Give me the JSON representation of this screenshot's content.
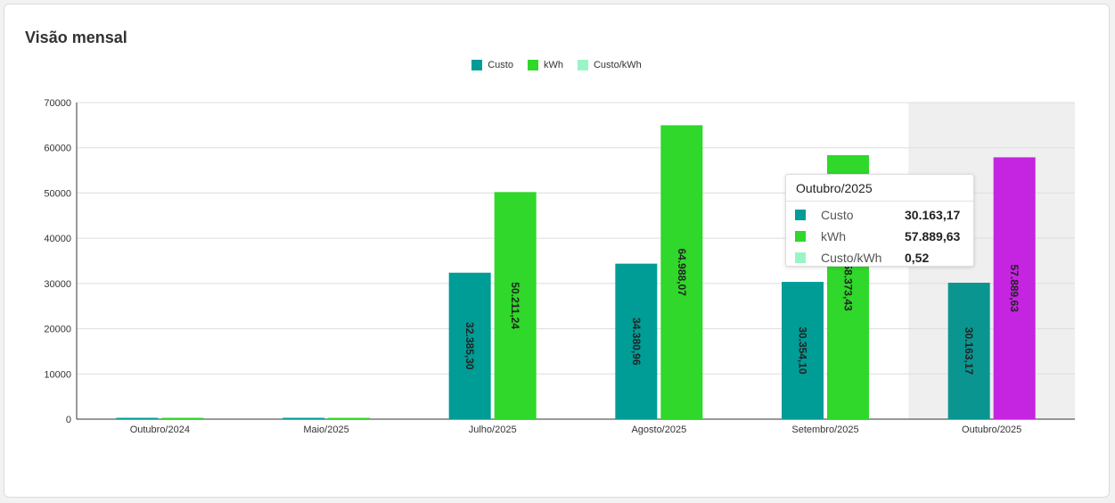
{
  "card": {
    "title": "Visão mensal"
  },
  "legend": [
    {
      "label": "Custo",
      "color": "#009c96"
    },
    {
      "label": "kWh",
      "color": "#2fd82a"
    },
    {
      "label": "Custo/kWh",
      "color": "#9af5c6"
    }
  ],
  "chart_data": {
    "type": "bar",
    "categories": [
      "Outubro/2024",
      "Maio/2025",
      "Julho/2025",
      "Agosto/2025",
      "Setembro/2025",
      "Outubro/2025"
    ],
    "series": [
      {
        "name": "Custo",
        "color": "#009c96",
        "values": [
          150,
          100,
          32385.3,
          34380.96,
          30354.1,
          30163.17
        ],
        "labels": [
          "",
          "",
          "32.385,30",
          "34.380,96",
          "30.354,10",
          "30.163,17"
        ]
      },
      {
        "name": "kWh",
        "color": "#2fd82a",
        "values": [
          300,
          150,
          50211.24,
          64988.07,
          58373.43,
          57889.63
        ],
        "labels": [
          "",
          "",
          "50.211,24",
          "64.988,07",
          "58.373,43",
          "57.889,63"
        ]
      },
      {
        "name": "Custo/kWh",
        "color": "#9af5c6",
        "values": [
          0,
          0,
          0.64,
          0.53,
          0.52,
          0.52
        ],
        "labels": []
      }
    ],
    "ylim": [
      0,
      70000
    ],
    "yticks": [
      0,
      10000,
      20000,
      30000,
      40000,
      50000,
      60000,
      70000
    ],
    "grid": true,
    "legend_position": "top-center",
    "highlighted_category": "Outubro/2025",
    "highlighted_bar_color": "#c524e0"
  },
  "tooltip": {
    "title": "Outubro/2025",
    "rows": [
      {
        "label": "Custo",
        "value": "30.163,17",
        "color": "#009c96"
      },
      {
        "label": "kWh",
        "value": "57.889,63",
        "color": "#2fd82a"
      },
      {
        "label": "Custo/kWh",
        "value": "0,52",
        "color": "#9af5c6"
      }
    ]
  }
}
